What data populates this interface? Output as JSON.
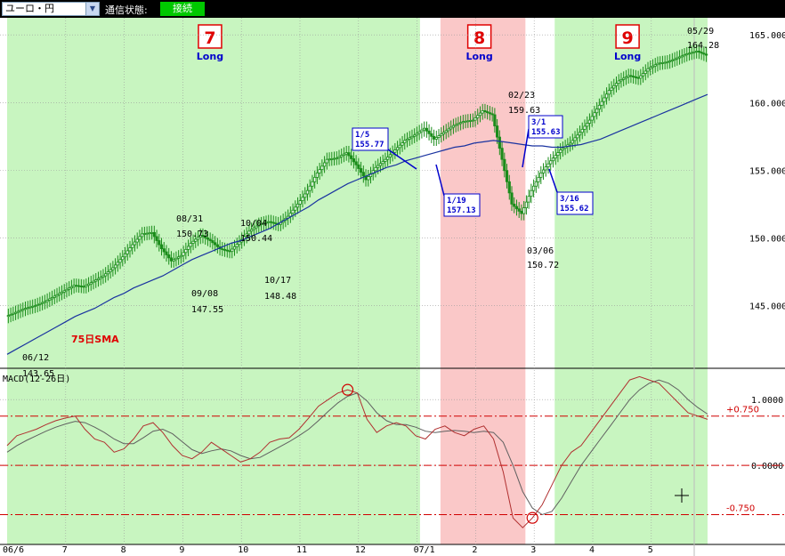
{
  "toolbar": {
    "pair": "ユーロ・円",
    "status_label": "通信状態:",
    "status_value": "接続"
  },
  "colors": {
    "long_zone": "#c8f5c0",
    "short_zone": "#fac8c8",
    "candle": "#1a8c1a",
    "sma": "#1a33a0",
    "macd": "#b03030",
    "signal": "#606060",
    "ref_line": "#d00000",
    "callout": "#0000cc"
  },
  "chart_data": {
    "type": "line",
    "time_axis": {
      "labels": [
        "06/6",
        "7",
        "8",
        "9",
        "10",
        "11",
        "12",
        "07/1",
        "2",
        "3",
        "4",
        "5"
      ]
    },
    "price_panel": {
      "ylim": [
        140.5,
        166.0
      ],
      "y_ticks": [
        145.0,
        150.0,
        155.0,
        160.0,
        165.0
      ],
      "y_tick_labels": [
        "145.000",
        "150.000",
        "155.000",
        "160.000",
        "165.000"
      ],
      "series_label": "75日SMA",
      "close": [
        144.2,
        144.5,
        144.8,
        145.0,
        145.3,
        145.7,
        146.1,
        146.5,
        146.4,
        146.8,
        147.2,
        147.8,
        148.6,
        149.5,
        150.3,
        150.4,
        149.2,
        148.3,
        148.7,
        149.6,
        150.2,
        149.8,
        149.2,
        149.0,
        149.7,
        150.5,
        151.0,
        151.2,
        151.0,
        151.6,
        152.5,
        153.5,
        154.8,
        155.8,
        155.9,
        156.3,
        155.4,
        154.3,
        155.2,
        155.8,
        156.5,
        157.2,
        157.6,
        158.1,
        157.3,
        157.8,
        158.3,
        158.6,
        158.7,
        159.4,
        159.1,
        155.8,
        152.5,
        151.8,
        153.5,
        154.8,
        155.7,
        156.5,
        157.0,
        157.8,
        158.7,
        159.8,
        160.9,
        161.6,
        162.0,
        161.8,
        162.5,
        162.9,
        163.0,
        163.3,
        163.6,
        163.8,
        163.5
      ],
      "sma": [
        141.4,
        141.8,
        142.2,
        142.6,
        143.0,
        143.4,
        143.8,
        144.2,
        144.5,
        144.8,
        145.2,
        145.6,
        145.9,
        146.3,
        146.6,
        146.9,
        147.2,
        147.6,
        148.0,
        148.4,
        148.7,
        149.0,
        149.3,
        149.6,
        149.8,
        150.1,
        150.4,
        150.7,
        151.1,
        151.5,
        151.9,
        152.3,
        152.8,
        153.2,
        153.6,
        154.0,
        154.3,
        154.6,
        154.9,
        155.2,
        155.4,
        155.7,
        155.9,
        156.1,
        156.3,
        156.5,
        156.7,
        156.8,
        157.0,
        157.1,
        157.2,
        157.1,
        157.0,
        156.9,
        156.8,
        156.8,
        156.7,
        156.7,
        156.8,
        156.9,
        157.1,
        157.3,
        157.6,
        157.9,
        158.2,
        158.5,
        158.8,
        159.1,
        159.4,
        159.7,
        160.0,
        160.3,
        160.6
      ],
      "zones": [
        {
          "type": "long",
          "start": 0.0,
          "end": 7.05,
          "number": "7",
          "label": "Long"
        },
        {
          "type": "short",
          "start": 7.4,
          "end": 8.85,
          "number": "8",
          "label": "Long"
        },
        {
          "type": "long",
          "start": 9.35,
          "end": 11.96,
          "number": "9",
          "label": "Long"
        }
      ],
      "annotations": [
        {
          "date": "06/12",
          "value": "143.65"
        },
        {
          "date": "08/31",
          "value": "150.73"
        },
        {
          "date": "09/08",
          "value": "147.55"
        },
        {
          "date": "10/04",
          "value": "150.44"
        },
        {
          "date": "10/17",
          "value": "148.48"
        },
        {
          "date": "02/23",
          "value": "159.63"
        },
        {
          "date": "03/06",
          "value": "150.72"
        },
        {
          "date": "05/29",
          "value": "164.28"
        }
      ],
      "callouts": [
        {
          "date": "1/5",
          "value": "155.77"
        },
        {
          "date": "1/19",
          "value": "157.13"
        },
        {
          "date": "3/1",
          "value": "155.63"
        },
        {
          "date": "3/16",
          "value": "155.62"
        }
      ]
    },
    "macd_panel": {
      "title": "MACD(12-26日)",
      "ylim": [
        -1.15,
        1.45
      ],
      "y_ticks": [
        1.0,
        0.0
      ],
      "y_tick_labels": [
        "1.0000",
        "0.0000"
      ],
      "ref_lines": [
        0.75,
        0.0,
        -0.75
      ],
      "ref_labels": [
        "+0.750",
        "",
        "-0.750"
      ],
      "macd": [
        0.3,
        0.45,
        0.5,
        0.55,
        0.62,
        0.68,
        0.72,
        0.75,
        0.55,
        0.4,
        0.35,
        0.2,
        0.25,
        0.4,
        0.6,
        0.65,
        0.5,
        0.3,
        0.15,
        0.1,
        0.2,
        0.35,
        0.25,
        0.15,
        0.05,
        0.1,
        0.2,
        0.35,
        0.4,
        0.42,
        0.55,
        0.72,
        0.9,
        1.0,
        1.1,
        1.15,
        1.1,
        0.7,
        0.5,
        0.6,
        0.65,
        0.6,
        0.45,
        0.4,
        0.55,
        0.6,
        0.5,
        0.45,
        0.55,
        0.6,
        0.4,
        -0.1,
        -0.8,
        -0.95,
        -0.8,
        -0.6,
        -0.3,
        0.0,
        0.2,
        0.3,
        0.5,
        0.7,
        0.9,
        1.1,
        1.3,
        1.35,
        1.3,
        1.25,
        1.1,
        0.95,
        0.8,
        0.75,
        0.7
      ],
      "signal": [
        0.2,
        0.3,
        0.38,
        0.45,
        0.52,
        0.58,
        0.63,
        0.67,
        0.65,
        0.58,
        0.5,
        0.4,
        0.33,
        0.33,
        0.42,
        0.52,
        0.55,
        0.48,
        0.36,
        0.24,
        0.18,
        0.22,
        0.25,
        0.22,
        0.15,
        0.1,
        0.12,
        0.2,
        0.28,
        0.36,
        0.45,
        0.55,
        0.68,
        0.82,
        0.95,
        1.05,
        1.1,
        0.98,
        0.8,
        0.68,
        0.62,
        0.62,
        0.58,
        0.52,
        0.5,
        0.52,
        0.53,
        0.52,
        0.5,
        0.52,
        0.5,
        0.35,
        0.0,
        -0.4,
        -0.65,
        -0.75,
        -0.7,
        -0.5,
        -0.25,
        0.0,
        0.2,
        0.4,
        0.6,
        0.8,
        1.0,
        1.15,
        1.25,
        1.3,
        1.25,
        1.15,
        1.0,
        0.88,
        0.78
      ],
      "markers": [
        35,
        54
      ]
    }
  }
}
